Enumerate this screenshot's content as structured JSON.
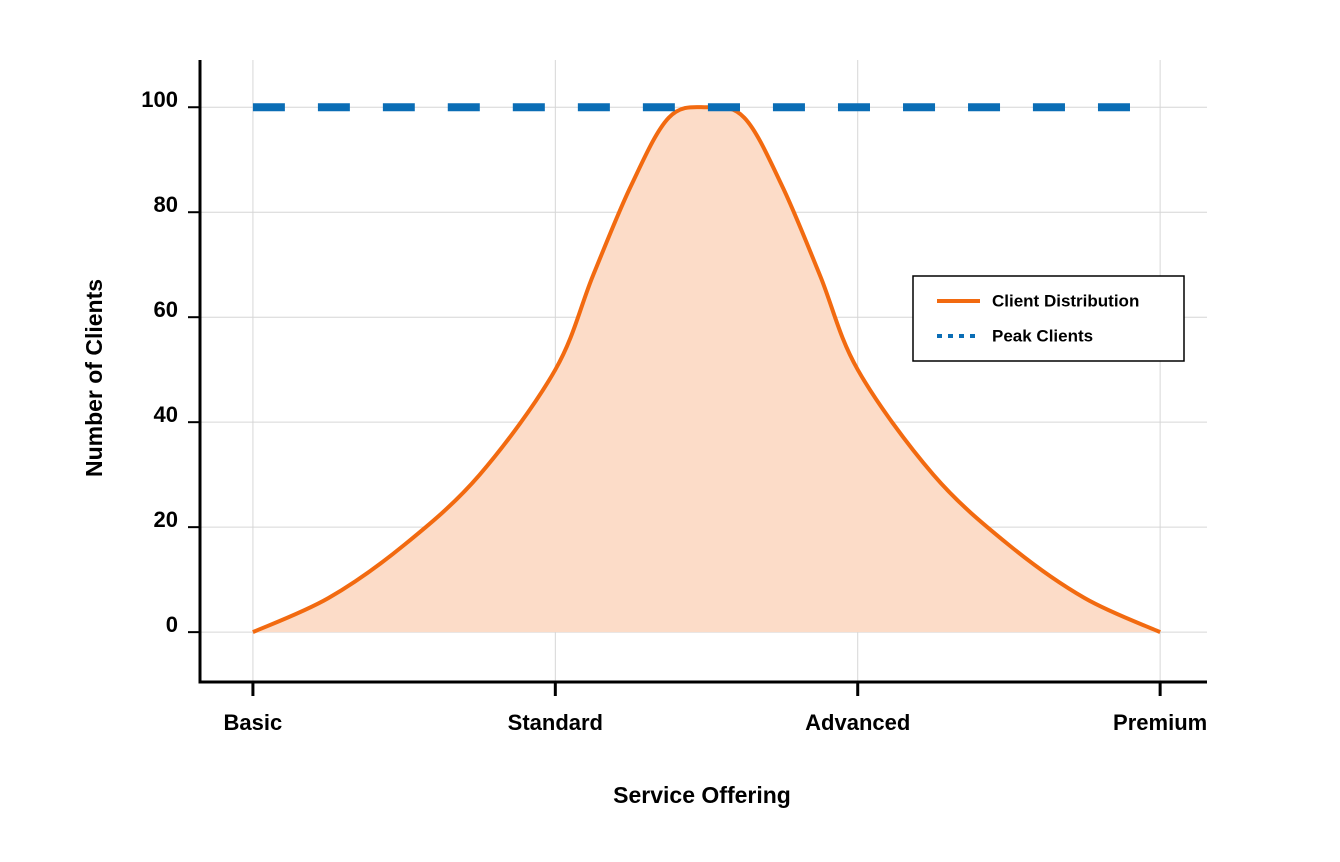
{
  "chart_data": {
    "type": "line",
    "xlabel": "Service Offering",
    "ylabel": "Number of Clients",
    "xlim": [
      -0.175,
      3.155
    ],
    "ylim": [
      -9.5,
      109
    ],
    "xticks": [
      {
        "value": 0,
        "label": "Basic"
      },
      {
        "value": 1,
        "label": "Standard"
      },
      {
        "value": 2,
        "label": "Advanced"
      },
      {
        "value": 3,
        "label": "Premium"
      }
    ],
    "yticks": [
      0,
      20,
      40,
      60,
      80,
      100
    ],
    "grid": true,
    "legend": "center right",
    "series": [
      {
        "name": "Client Distribution",
        "color": "#f26a10",
        "fill": "#fcdcc8",
        "style": "solid",
        "x": [
          0,
          0.25,
          0.5,
          0.75,
          1,
          1.125,
          1.25,
          1.375,
          1.5,
          1.625,
          1.75,
          1.875,
          2,
          2.25,
          2.5,
          2.75,
          3
        ],
        "values": [
          0,
          6.5,
          16.6,
          30,
          50,
          68,
          85,
          98,
          100,
          98,
          85,
          68,
          50,
          30,
          16.6,
          6.5,
          0
        ]
      },
      {
        "name": "Peak Clients",
        "color": "#0a6db5",
        "style": "dashed",
        "x": [
          0,
          3
        ],
        "values": [
          100,
          100
        ]
      }
    ]
  }
}
